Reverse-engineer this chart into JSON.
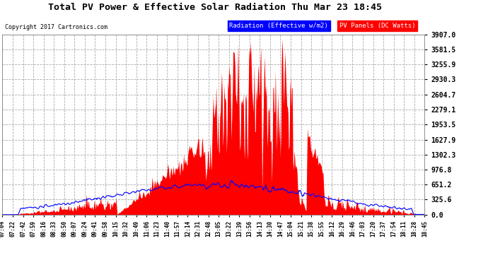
{
  "title": "Total PV Power & Effective Solar Radiation Thu Mar 23 18:45",
  "copyright": "Copyright 2017 Cartronics.com",
  "legend_radiation": "Radiation (Effective w/m2)",
  "legend_pv": "PV Panels (DC Watts)",
  "y_ticks": [
    0.0,
    325.6,
    651.2,
    976.8,
    1302.3,
    1627.9,
    1953.5,
    2279.1,
    2604.7,
    2930.3,
    3255.9,
    3581.5,
    3907.0
  ],
  "y_max": 3907.0,
  "bg_color": "#ffffff",
  "plot_bg_color": "#ffffff",
  "red_color": "#ff0000",
  "blue_color": "#0000ff",
  "grid_color": "#cccccc",
  "title_color": "#000000",
  "x_tick_labels": [
    "07:04",
    "07:22",
    "07:42",
    "07:59",
    "08:16",
    "08:33",
    "08:50",
    "09:07",
    "09:24",
    "09:41",
    "09:58",
    "10:15",
    "10:32",
    "10:49",
    "11:06",
    "11:23",
    "11:40",
    "11:57",
    "12:14",
    "12:31",
    "12:48",
    "13:05",
    "13:22",
    "13:39",
    "13:56",
    "14:13",
    "14:30",
    "14:47",
    "15:04",
    "15:21",
    "15:38",
    "15:55",
    "16:12",
    "16:29",
    "16:46",
    "17:03",
    "17:20",
    "17:37",
    "17:54",
    "18:11",
    "18:28",
    "18:45"
  ],
  "total_minutes": 701
}
